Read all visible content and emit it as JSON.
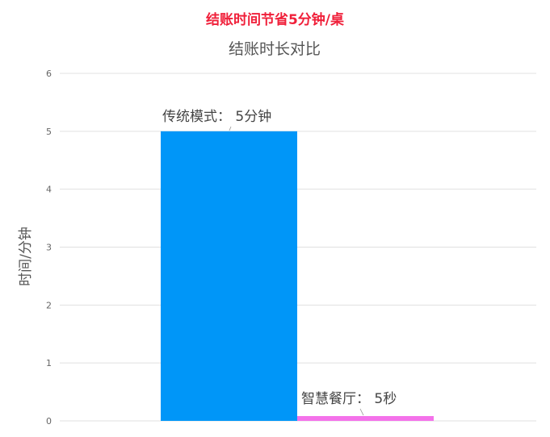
{
  "headline": "结账时间节省5分钟/桌",
  "chart_data": {
    "type": "bar",
    "title": "结账时长对比",
    "ylabel": "时间/分钟",
    "xlabel": "",
    "ylim": [
      0,
      6
    ],
    "yticks": [
      0,
      1,
      2,
      3,
      4,
      5,
      6
    ],
    "grid": true,
    "categories": [
      "传统模式",
      "智慧餐厅"
    ],
    "values": [
      5,
      0.083
    ],
    "data_labels": [
      "传统模式： 5分钟",
      "智慧餐厅： 5秒"
    ],
    "colors": [
      "#0096f8",
      "#f472ea"
    ],
    "grid_color": "#e0e0e0"
  }
}
